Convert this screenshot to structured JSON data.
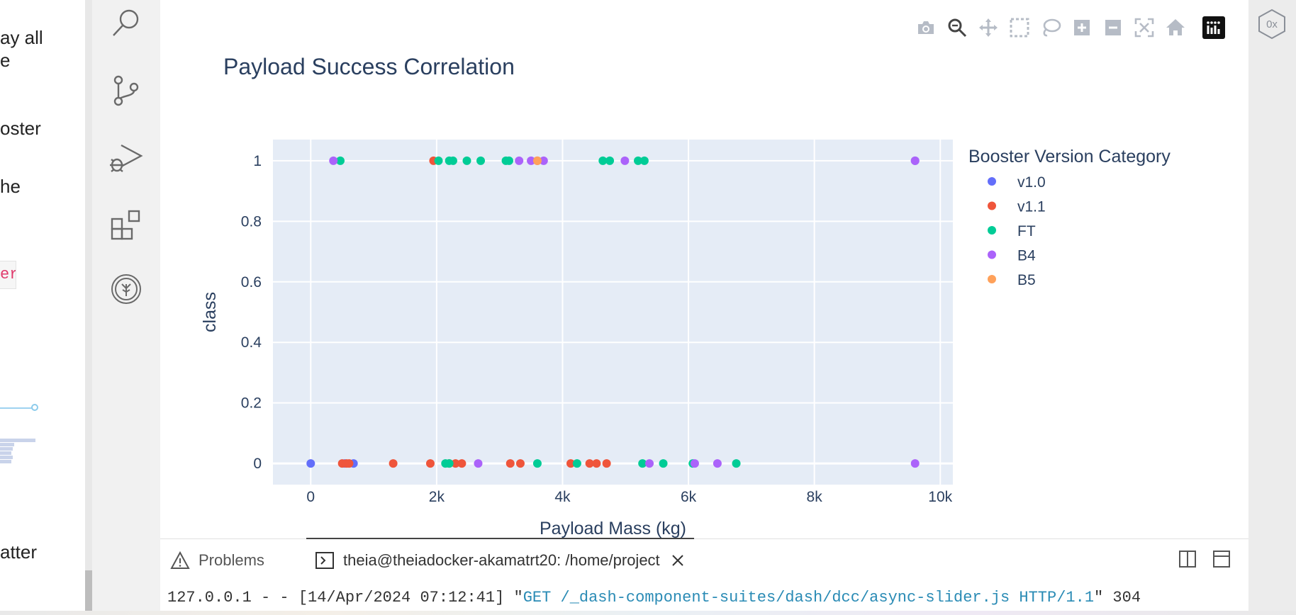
{
  "left_panel": {
    "fragments": [
      "ay all",
      "e",
      "oster",
      "he",
      "atter"
    ],
    "code_fragment": "er"
  },
  "activity_bar": {
    "icons": [
      "search-icon",
      "source-control-icon",
      "run-debug-icon",
      "extensions-icon",
      "skills-network-icon"
    ]
  },
  "toolbar": {
    "icons": [
      "camera-icon",
      "zoom-icon",
      "pan-icon",
      "box-select-icon",
      "lasso-select-icon",
      "zoom-in-icon",
      "zoom-out-icon",
      "autoscale-icon",
      "reset-axes-icon",
      "plotly-logo-icon"
    ]
  },
  "right_strip": {
    "badge": "0x"
  },
  "chart_data": {
    "type": "scatter",
    "title": "Payload Success Correlation",
    "xlabel": "Payload Mass (kg)",
    "ylabel": "class",
    "xlim": [
      -600,
      10200
    ],
    "ylim": [
      -0.07,
      1.07
    ],
    "x_ticks": [
      0,
      2000,
      4000,
      6000,
      8000,
      10000
    ],
    "x_tick_labels": [
      "0",
      "2k",
      "4k",
      "6k",
      "8k",
      "10k"
    ],
    "y_ticks": [
      0,
      0.2,
      0.4,
      0.6,
      0.8,
      1
    ],
    "y_tick_labels": [
      "0",
      "0.2",
      "0.4",
      "0.6",
      "0.8",
      "1"
    ],
    "grid": true,
    "legend_title": "Booster Version Category",
    "legend_position": "right",
    "series": [
      {
        "name": "v1.0",
        "color": "#636efa",
        "points": [
          [
            0,
            0
          ],
          [
            680,
            0
          ],
          [
            540,
            0
          ],
          [
            9600,
            1
          ]
        ]
      },
      {
        "name": "v1.1",
        "color": "#ef553b",
        "points": [
          [
            500,
            0
          ],
          [
            570,
            0
          ],
          [
            610,
            0
          ],
          [
            1310,
            0
          ],
          [
            1900,
            0
          ],
          [
            2200,
            0
          ],
          [
            2300,
            0
          ],
          [
            2400,
            0
          ],
          [
            3170,
            0
          ],
          [
            3330,
            0
          ],
          [
            4130,
            0
          ],
          [
            4430,
            0
          ],
          [
            4540,
            0
          ],
          [
            4700,
            0
          ],
          [
            1950,
            1
          ],
          [
            3600,
            1
          ]
        ]
      },
      {
        "name": "FT",
        "color": "#00cc96",
        "points": [
          [
            470,
            1
          ],
          [
            2030,
            1
          ],
          [
            2200,
            1
          ],
          [
            2260,
            1
          ],
          [
            2480,
            1
          ],
          [
            2700,
            1
          ],
          [
            3100,
            1
          ],
          [
            3150,
            1
          ],
          [
            4640,
            1
          ],
          [
            4750,
            1
          ],
          [
            5200,
            1
          ],
          [
            5300,
            1
          ],
          [
            2140,
            0
          ],
          [
            2200,
            0
          ],
          [
            3600,
            0
          ],
          [
            4230,
            0
          ],
          [
            5270,
            0
          ],
          [
            5600,
            0
          ],
          [
            6070,
            0
          ],
          [
            6760,
            0
          ]
        ]
      },
      {
        "name": "B4",
        "color": "#ab63fa",
        "points": [
          [
            360,
            1
          ],
          [
            3310,
            1
          ],
          [
            3500,
            1
          ],
          [
            3700,
            1
          ],
          [
            4990,
            1
          ],
          [
            9600,
            1
          ],
          [
            2660,
            0
          ],
          [
            5380,
            0
          ],
          [
            6100,
            0
          ],
          [
            6460,
            0
          ],
          [
            9600,
            0
          ]
        ]
      },
      {
        "name": "B5",
        "color": "#ffa15a",
        "points": [
          [
            3600,
            1
          ]
        ]
      }
    ]
  },
  "bottom_panel": {
    "problems_label": "Problems",
    "terminal_tab_label": "theia@theiadocker-akamatrt20: /home/project",
    "terminal_line": {
      "prefix": "127.0.0.1 - - [14/Apr/2024 07:12:41] \"",
      "request": "GET /_dash-component-suites/dash/dcc/async-slider.js HTTP/1.1",
      "suffix": "\" 304"
    }
  }
}
